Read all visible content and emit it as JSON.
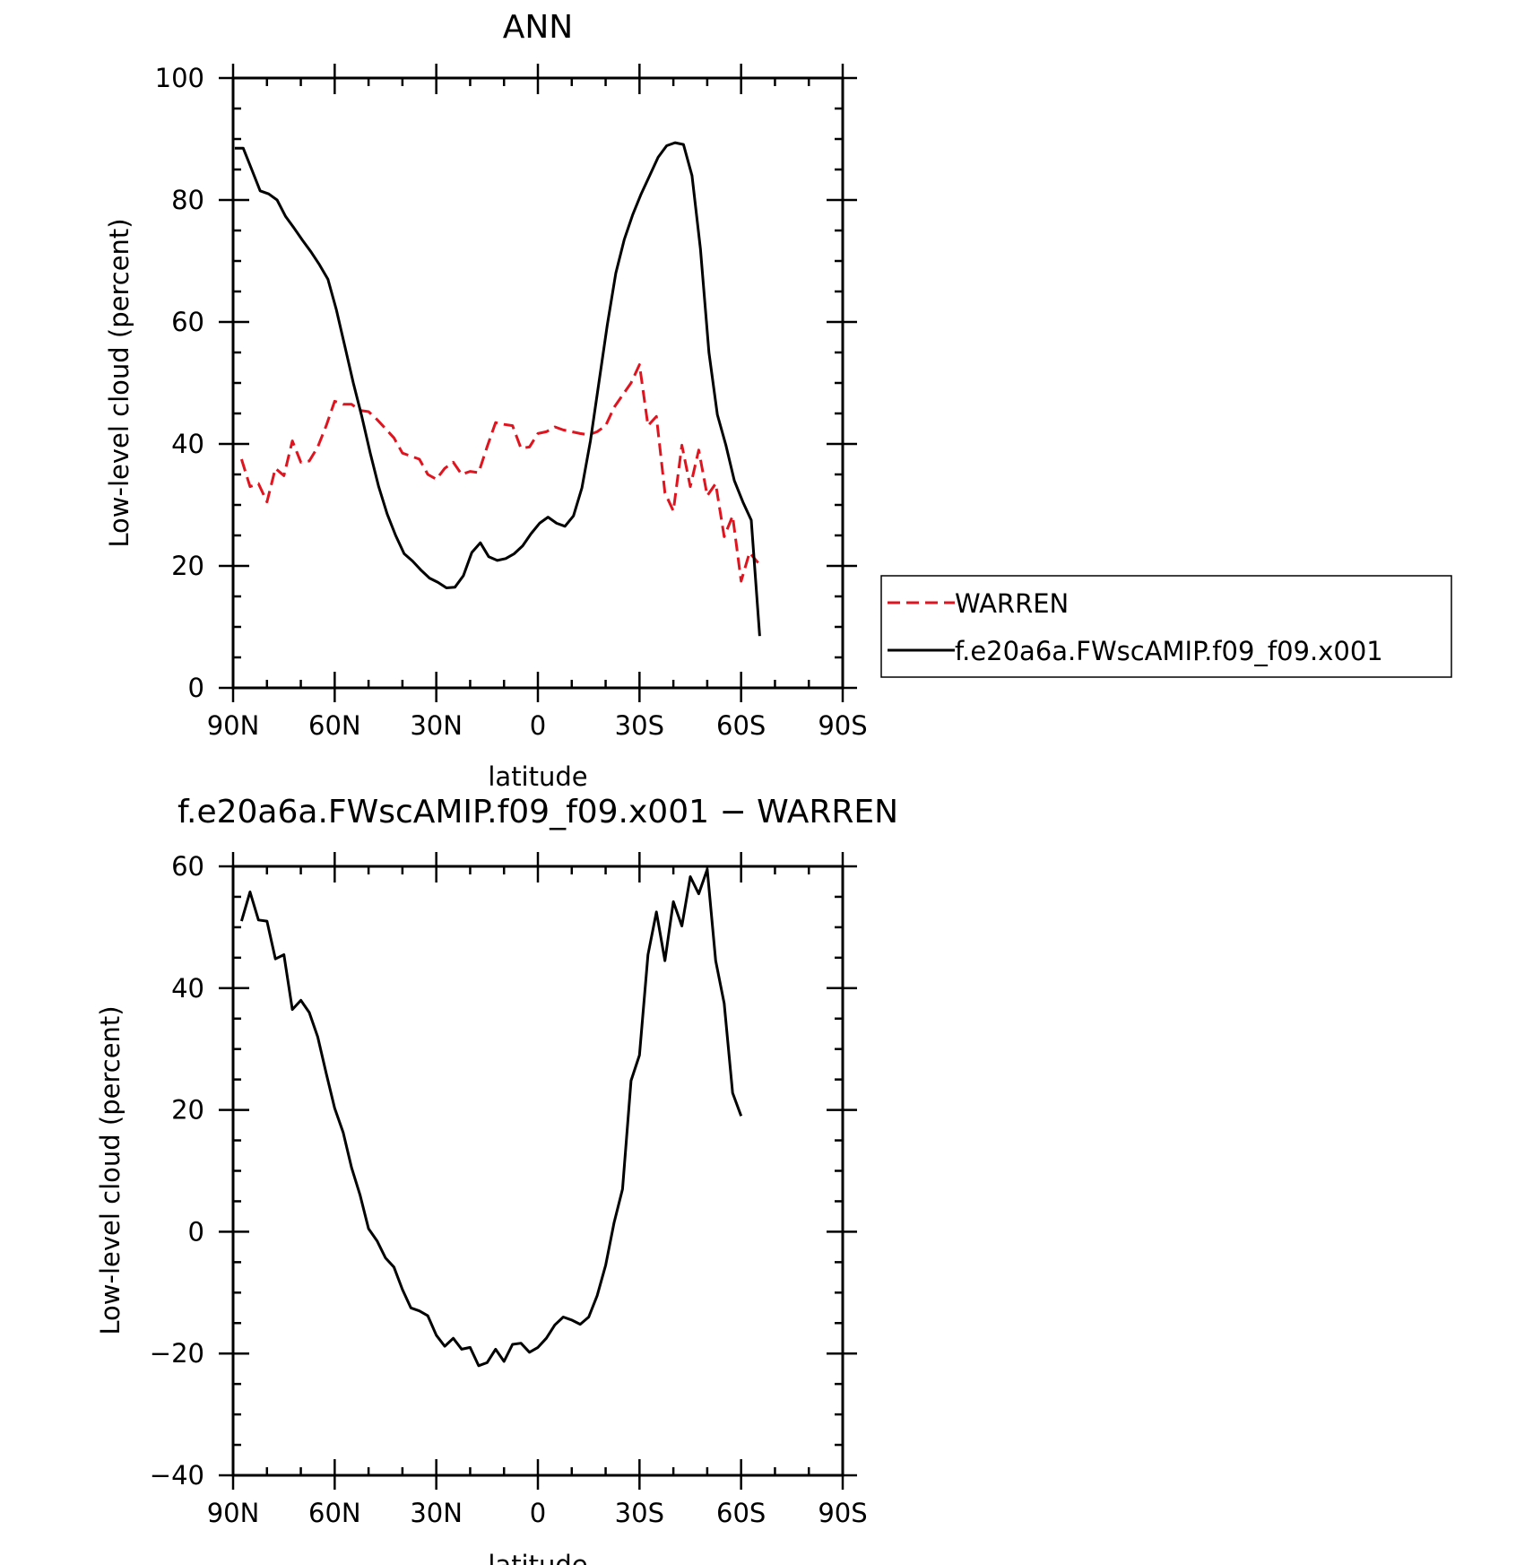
{
  "colors": {
    "warren": "#e0141e",
    "model": "#000000"
  },
  "chart_data": [
    {
      "type": "line",
      "title": "ANN",
      "xlabel": "latitude",
      "ylabel": "Low-level cloud (percent)",
      "xlim": [
        90,
        -90
      ],
      "ylim": [
        0,
        100
      ],
      "x_ticks": [
        {
          "value": 90,
          "label": "90N"
        },
        {
          "value": 60,
          "label": "60N"
        },
        {
          "value": 30,
          "label": "30N"
        },
        {
          "value": 0,
          "label": "0"
        },
        {
          "value": -30,
          "label": "30S"
        },
        {
          "value": -60,
          "label": "60S"
        },
        {
          "value": -90,
          "label": "90S"
        }
      ],
      "y_ticks": [
        {
          "value": 0,
          "label": "0"
        },
        {
          "value": 20,
          "label": "20"
        },
        {
          "value": 40,
          "label": "40"
        },
        {
          "value": 60,
          "label": "60"
        },
        {
          "value": 80,
          "label": "80"
        },
        {
          "value": 100,
          "label": "100"
        }
      ],
      "legend": {
        "placement": "right",
        "entries": [
          "WARREN",
          "f.e20a6a.FWscAMIP.f09_f09.x001"
        ]
      },
      "series": [
        {
          "name": "WARREN",
          "style": "dashed",
          "color": "#e0141e",
          "points": [
            [
              87.5,
              37.5
            ],
            [
              85,
              33
            ],
            [
              82.5,
              33.5
            ],
            [
              80,
              30.5
            ],
            [
              77.5,
              36
            ],
            [
              75,
              34.8
            ],
            [
              72.5,
              40.5
            ],
            [
              70,
              37
            ],
            [
              67.5,
              37.2
            ],
            [
              65,
              39.5
            ],
            [
              62.5,
              43
            ],
            [
              60,
              47
            ],
            [
              57.5,
              46.5
            ],
            [
              55,
              46.5
            ],
            [
              52.5,
              45.5
            ],
            [
              50,
              45.3
            ],
            [
              47.5,
              44
            ],
            [
              45,
              42.5
            ],
            [
              42.5,
              41
            ],
            [
              40,
              38.5
            ],
            [
              37.5,
              38
            ],
            [
              35,
              37.5
            ],
            [
              32.5,
              35
            ],
            [
              30,
              34.2
            ],
            [
              27.5,
              36
            ],
            [
              25,
              37
            ],
            [
              22.5,
              35
            ],
            [
              20,
              35.5
            ],
            [
              17.5,
              35.3
            ],
            [
              15,
              39.5
            ],
            [
              12.5,
              43.5
            ],
            [
              10,
              43.2
            ],
            [
              7.5,
              43
            ],
            [
              5,
              39.3
            ],
            [
              2.5,
              39.5
            ],
            [
              0,
              41.7
            ],
            [
              -2.5,
              42
            ],
            [
              -5,
              42.8
            ],
            [
              -7.5,
              42.3
            ],
            [
              -10,
              42
            ],
            [
              -12.5,
              41.7
            ],
            [
              -15,
              41.5
            ],
            [
              -17.5,
              42
            ],
            [
              -20,
              43
            ],
            [
              -22.5,
              46
            ],
            [
              -25,
              48
            ],
            [
              -27.5,
              50
            ],
            [
              -30,
              53
            ],
            [
              -32.5,
              43
            ],
            [
              -35,
              44.5
            ],
            [
              -37.5,
              32
            ],
            [
              -40,
              29
            ],
            [
              -42.5,
              39.8
            ],
            [
              -45,
              33
            ],
            [
              -47.5,
              39
            ],
            [
              -50,
              31.5
            ],
            [
              -52.5,
              33.5
            ],
            [
              -55,
              24.8
            ],
            [
              -57.5,
              28.2
            ],
            [
              -60,
              17.5
            ],
            [
              -62.5,
              22.2
            ],
            [
              -65,
              20.5
            ]
          ]
        },
        {
          "name": "f.e20a6a.FWscAMIP.f09_f09.x001",
          "style": "solid",
          "color": "#000000",
          "points": [
            [
              89.5,
              88.5
            ],
            [
              87,
              88.5
            ],
            [
              84.5,
              85
            ],
            [
              82,
              81.5
            ],
            [
              79.5,
              81
            ],
            [
              77,
              80
            ],
            [
              74.5,
              77.3
            ],
            [
              72,
              75.4
            ],
            [
              69.5,
              73.4
            ],
            [
              67,
              71.5
            ],
            [
              64.5,
              69.4
            ],
            [
              62,
              67
            ],
            [
              59.5,
              62
            ],
            [
              57,
              56
            ],
            [
              54.5,
              50
            ],
            [
              52,
              44.5
            ],
            [
              49.5,
              38.5
            ],
            [
              47,
              33
            ],
            [
              44.5,
              28.5
            ],
            [
              42,
              25
            ],
            [
              39.5,
              22
            ],
            [
              37,
              20.8
            ],
            [
              34.5,
              19.3
            ],
            [
              32,
              18
            ],
            [
              29.5,
              17.3
            ],
            [
              27,
              16.4
            ],
            [
              24.5,
              16.5
            ],
            [
              22,
              18.4
            ],
            [
              19.5,
              22.2
            ],
            [
              17,
              23.8
            ],
            [
              14.5,
              21.5
            ],
            [
              12,
              20.9
            ],
            [
              9.5,
              21.2
            ],
            [
              7,
              22
            ],
            [
              4.5,
              23.3
            ],
            [
              2,
              25.3
            ],
            [
              -0.5,
              27
            ],
            [
              -3,
              28
            ],
            [
              -5.5,
              27
            ],
            [
              -8,
              26.5
            ],
            [
              -10.5,
              28.2
            ],
            [
              -13,
              32.8
            ],
            [
              -15.5,
              40.5
            ],
            [
              -18,
              50
            ],
            [
              -20.5,
              59.5
            ],
            [
              -23,
              68
            ],
            [
              -25.5,
              73.5
            ],
            [
              -28,
              77.6
            ],
            [
              -30.5,
              81
            ],
            [
              -33,
              84
            ],
            [
              -35.5,
              87
            ],
            [
              -38,
              88.9
            ],
            [
              -40.5,
              89.4
            ],
            [
              -43,
              89.1
            ],
            [
              -45.5,
              84
            ],
            [
              -48,
              72
            ],
            [
              -50.5,
              55
            ],
            [
              -53,
              44.8
            ],
            [
              -55.5,
              39.8
            ],
            [
              -58,
              34
            ],
            [
              -60.5,
              30.5
            ],
            [
              -63,
              27.5
            ],
            [
              -65.5,
              8.5
            ]
          ]
        }
      ]
    },
    {
      "type": "line",
      "title": "f.e20a6a.FWscAMIP.f09_f09.x001 − WARREN",
      "xlabel": "latitude",
      "ylabel": "Low-level cloud (percent)",
      "xlim": [
        90,
        -90
      ],
      "ylim": [
        -40,
        60
      ],
      "x_ticks": [
        {
          "value": 90,
          "label": "90N"
        },
        {
          "value": 60,
          "label": "60N"
        },
        {
          "value": 30,
          "label": "30N"
        },
        {
          "value": 0,
          "label": "0"
        },
        {
          "value": -30,
          "label": "30S"
        },
        {
          "value": -60,
          "label": "60S"
        },
        {
          "value": -90,
          "label": "90S"
        }
      ],
      "y_ticks": [
        {
          "value": -40,
          "label": "−40"
        },
        {
          "value": -20,
          "label": "−20"
        },
        {
          "value": 0,
          "label": "0"
        },
        {
          "value": 20,
          "label": "20"
        },
        {
          "value": 40,
          "label": "40"
        },
        {
          "value": 60,
          "label": "60"
        }
      ],
      "series": [
        {
          "style": "solid",
          "color": "#000000",
          "points": [
            [
              87.5,
              51
            ],
            [
              85,
              55.8
            ],
            [
              82.5,
              51.2
            ],
            [
              80,
              51
            ],
            [
              77.5,
              44.8
            ],
            [
              75,
              45.5
            ],
            [
              72.5,
              36.5
            ],
            [
              70,
              38
            ],
            [
              67.5,
              36
            ],
            [
              65,
              32
            ],
            [
              62.5,
              26
            ],
            [
              60,
              20.3
            ],
            [
              57.5,
              16.3
            ],
            [
              55,
              10.5
            ],
            [
              52.5,
              6
            ],
            [
              50,
              0.5
            ],
            [
              47.5,
              -1.5
            ],
            [
              45,
              -4.3
            ],
            [
              42.5,
              -5.8
            ],
            [
              40,
              -9.5
            ],
            [
              37.5,
              -12.5
            ],
            [
              35,
              -13
            ],
            [
              32.5,
              -13.8
            ],
            [
              30,
              -17
            ],
            [
              27.5,
              -18.8
            ],
            [
              25,
              -17.5
            ],
            [
              22.5,
              -19.3
            ],
            [
              20,
              -19
            ],
            [
              17.5,
              -22
            ],
            [
              15,
              -21.5
            ],
            [
              12.5,
              -19.3
            ],
            [
              10,
              -21.3
            ],
            [
              7.5,
              -18.5
            ],
            [
              5,
              -18.3
            ],
            [
              2.5,
              -19.8
            ],
            [
              0,
              -19
            ],
            [
              -2.5,
              -17.5
            ],
            [
              -5,
              -15.3
            ],
            [
              -7.5,
              -14
            ],
            [
              -10,
              -14.5
            ],
            [
              -12.5,
              -15.2
            ],
            [
              -15,
              -14
            ],
            [
              -17.5,
              -10.5
            ],
            [
              -20,
              -5.5
            ],
            [
              -22.5,
              1.5
            ],
            [
              -25,
              7
            ],
            [
              -27.5,
              24.8
            ],
            [
              -30,
              29
            ],
            [
              -32.5,
              45.5
            ],
            [
              -35,
              52.5
            ],
            [
              -37.5,
              44.5
            ],
            [
              -40,
              54.2
            ],
            [
              -42.5,
              50.2
            ],
            [
              -45,
              58.3
            ],
            [
              -47.5,
              55.5
            ],
            [
              -50,
              59.5
            ],
            [
              -52.5,
              44.5
            ],
            [
              -55,
              37.5
            ],
            [
              -57.5,
              22.8
            ],
            [
              -60,
              19
            ]
          ]
        }
      ]
    }
  ]
}
